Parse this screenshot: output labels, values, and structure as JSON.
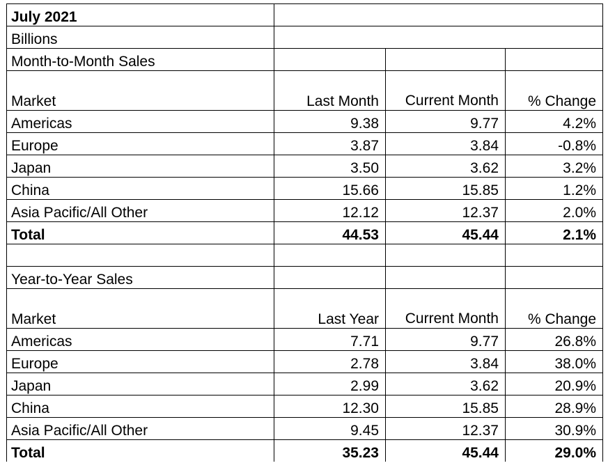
{
  "header": {
    "title": "July 2021",
    "unit": "Billions"
  },
  "month_to_month": {
    "section_title": "Month-to-Month Sales",
    "columns": {
      "market": "Market",
      "prior": "Last Month",
      "current": "Current Month",
      "change": "% Change"
    },
    "rows": [
      {
        "market": "Americas",
        "prior": "9.38",
        "current": "9.77",
        "change": "4.2%"
      },
      {
        "market": "Europe",
        "prior": "3.87",
        "current": "3.84",
        "change": "-0.8%"
      },
      {
        "market": "Japan",
        "prior": "3.50",
        "current": "3.62",
        "change": "3.2%"
      },
      {
        "market": "China",
        "prior": "15.66",
        "current": "15.85",
        "change": "1.2%"
      },
      {
        "market": "Asia Pacific/All Other",
        "prior": "12.12",
        "current": "12.37",
        "change": "2.0%"
      }
    ],
    "total": {
      "market": "Total",
      "prior": "44.53",
      "current": "45.44",
      "change": "2.1%"
    }
  },
  "year_to_year": {
    "section_title": "Year-to-Year Sales",
    "columns": {
      "market": "Market",
      "prior": "Last Year",
      "current": "Current Month",
      "change": "% Change"
    },
    "rows": [
      {
        "market": "Americas",
        "prior": "7.71",
        "current": "9.77",
        "change": "26.8%"
      },
      {
        "market": "Europe",
        "prior": "2.78",
        "current": "3.84",
        "change": "38.0%"
      },
      {
        "market": "Japan",
        "prior": "2.99",
        "current": "3.62",
        "change": "20.9%"
      },
      {
        "market": "China",
        "prior": "12.30",
        "current": "15.85",
        "change": "28.9%"
      },
      {
        "market": "Asia Pacific/All Other",
        "prior": "9.45",
        "current": "12.37",
        "change": "30.9%"
      }
    ],
    "total": {
      "market": "Total",
      "prior": "35.23",
      "current": "45.44",
      "change": "29.0%"
    }
  }
}
